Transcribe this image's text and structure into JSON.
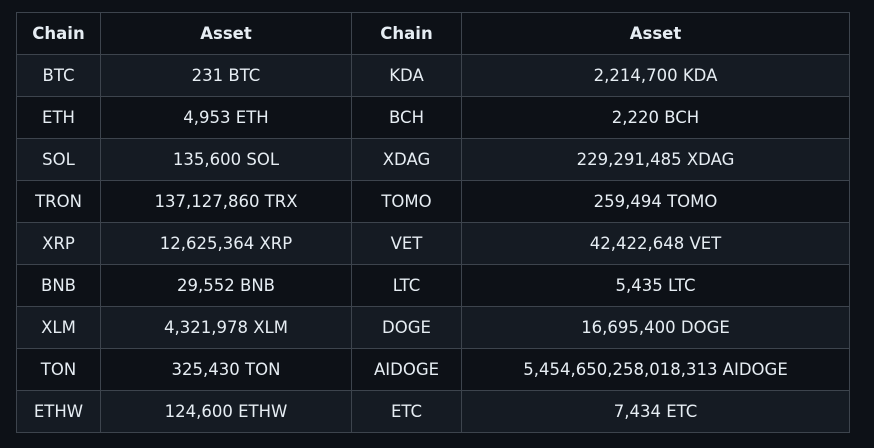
{
  "table": {
    "headers": [
      "Chain",
      "Asset",
      "Chain",
      "Asset"
    ],
    "rows": [
      [
        "BTC",
        "231 BTC",
        "KDA",
        "2,214,700 KDA"
      ],
      [
        "ETH",
        "4,953 ETH",
        "BCH",
        "2,220 BCH"
      ],
      [
        "SOL",
        "135,600 SOL",
        "XDAG",
        "229,291,485 XDAG"
      ],
      [
        "TRON",
        "137,127,860 TRX",
        "TOMO",
        "259,494 TOMO"
      ],
      [
        "XRP",
        "12,625,364 XRP",
        "VET",
        "42,422,648 VET"
      ],
      [
        "BNB",
        "29,552 BNB",
        "LTC",
        "5,435 LTC"
      ],
      [
        "XLM",
        "4,321,978 XLM",
        "DOGE",
        "16,695,400 DOGE"
      ],
      [
        "TON",
        "325,430 TON",
        "AIDOGE",
        "5,454,650,258,018,313 AIDOGE"
      ],
      [
        "ETHW",
        "124,600 ETHW",
        "ETC",
        "7,434 ETC"
      ]
    ]
  }
}
